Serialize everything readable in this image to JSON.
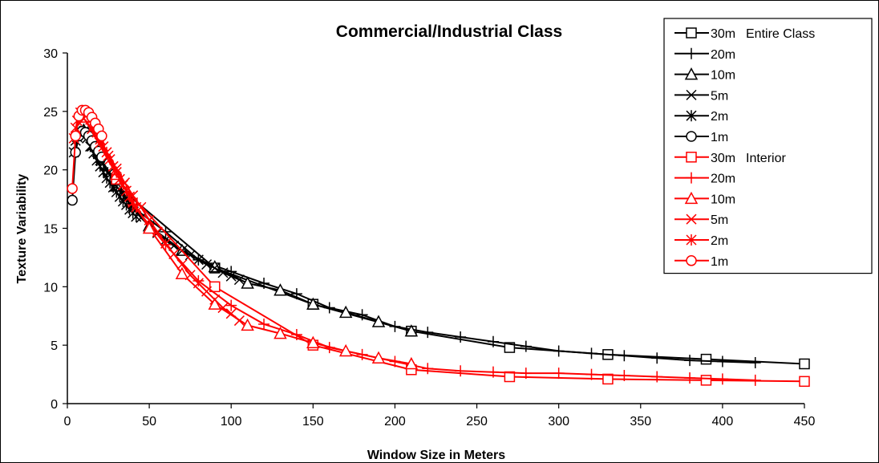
{
  "chart_data": {
    "type": "line",
    "title": "Commercial/Industrial Class",
    "xlabel": "Window Size in Meters",
    "ylabel": "Texture Variability",
    "xlim": [
      0,
      450
    ],
    "ylim": [
      0,
      30
    ],
    "xticks": [
      0,
      50,
      100,
      150,
      200,
      250,
      300,
      350,
      400,
      450
    ],
    "yticks": [
      0,
      5,
      10,
      15,
      20,
      25,
      30
    ],
    "grid": false,
    "legend_position": "top-right",
    "series": [
      {
        "name": "30m",
        "legend_note": "Entire Class",
        "color": "#000000",
        "marker": "square",
        "x": [
          30,
          90,
          150,
          210,
          270,
          330,
          390,
          450
        ],
        "y": [
          18.7,
          11.6,
          8.5,
          6.2,
          4.8,
          4.2,
          3.8,
          3.4
        ]
      },
      {
        "name": "20m",
        "color": "#000000",
        "marker": "plus",
        "x": [
          20,
          40,
          60,
          80,
          100,
          120,
          140,
          160,
          180,
          200,
          220,
          240,
          260,
          280,
          300,
          320,
          340,
          360,
          380,
          400,
          420
        ],
        "y": [
          21.0,
          16.8,
          14.7,
          12.3,
          11.3,
          10.3,
          9.4,
          8.2,
          7.6,
          6.6,
          6.1,
          5.7,
          5.3,
          4.9,
          4.5,
          4.3,
          4.1,
          3.9,
          3.7,
          3.6,
          3.5
        ]
      },
      {
        "name": "10m",
        "color": "#000000",
        "marker": "triangle",
        "x": [
          10,
          30,
          50,
          70,
          90,
          110,
          130,
          150,
          170,
          190,
          210
        ],
        "y": [
          23.4,
          18.6,
          15.2,
          13.1,
          11.7,
          10.3,
          9.7,
          8.5,
          7.8,
          7.0,
          6.2
        ]
      },
      {
        "name": "5m",
        "color": "#000000",
        "marker": "x",
        "x": [
          5,
          10,
          15,
          20,
          25,
          30,
          35,
          40,
          45,
          50,
          55,
          60,
          65,
          70,
          75,
          80,
          85,
          90,
          95,
          100,
          105
        ],
        "y": [
          22.5,
          23.3,
          22.0,
          20.8,
          19.7,
          18.6,
          17.6,
          16.7,
          15.9,
          15.2,
          14.6,
          14.0,
          13.5,
          13.1,
          12.7,
          12.3,
          11.9,
          11.6,
          11.2,
          10.9,
          10.6
        ]
      },
      {
        "name": "2m",
        "color": "#000000",
        "marker": "asterisk",
        "x": [
          4,
          6,
          8,
          10,
          12,
          14,
          16,
          18,
          20,
          22,
          24,
          26,
          28,
          30,
          32,
          34,
          36,
          38,
          40,
          42
        ],
        "y": [
          21.5,
          22.8,
          23.3,
          23.2,
          22.7,
          22.0,
          21.4,
          20.8,
          20.3,
          19.8,
          19.3,
          18.9,
          18.5,
          18.1,
          17.7,
          17.3,
          17.0,
          16.6,
          16.3,
          16.0
        ]
      },
      {
        "name": "1m",
        "color": "#000000",
        "marker": "circle",
        "x": [
          3,
          5,
          7,
          9,
          11,
          13,
          15,
          17,
          19,
          21
        ],
        "y": [
          17.4,
          21.5,
          22.9,
          23.3,
          23.2,
          22.9,
          22.5,
          22.0,
          21.6,
          21.1
        ]
      },
      {
        "name": "30m",
        "legend_note": "Interior",
        "color": "#ff0000",
        "marker": "square",
        "x": [
          30,
          90,
          150,
          210,
          270,
          330,
          390,
          450
        ],
        "y": [
          19.2,
          10.0,
          5.0,
          2.9,
          2.3,
          2.1,
          2.0,
          1.9
        ]
      },
      {
        "name": "20m",
        "color": "#ff0000",
        "marker": "plus",
        "x": [
          20,
          40,
          60,
          80,
          100,
          120,
          140,
          160,
          180,
          200,
          220,
          240,
          260,
          280,
          300,
          320,
          340,
          360,
          380,
          400,
          420
        ],
        "y": [
          22.7,
          17.0,
          13.6,
          10.5,
          8.4,
          6.8,
          5.9,
          4.8,
          4.2,
          3.6,
          3.0,
          2.8,
          2.7,
          2.6,
          2.6,
          2.5,
          2.4,
          2.3,
          2.2,
          2.1,
          2.0
        ]
      },
      {
        "name": "10m",
        "color": "#ff0000",
        "marker": "triangle",
        "x": [
          10,
          30,
          50,
          70,
          90,
          110,
          130,
          150,
          170,
          190,
          210
        ],
        "y": [
          24.5,
          19.6,
          15.0,
          11.1,
          8.5,
          6.7,
          6.0,
          5.2,
          4.5,
          3.9,
          3.4
        ]
      },
      {
        "name": "5m",
        "color": "#ff0000",
        "marker": "x",
        "x": [
          5,
          10,
          15,
          20,
          25,
          30,
          35,
          40,
          45,
          50,
          55,
          60,
          65,
          70,
          75,
          80,
          85,
          90,
          95,
          100,
          105
        ],
        "y": [
          23.6,
          24.4,
          23.5,
          22.3,
          21.2,
          20.1,
          18.9,
          17.8,
          16.8,
          15.7,
          14.7,
          13.7,
          12.8,
          11.9,
          11.0,
          10.3,
          9.6,
          8.9,
          8.2,
          7.7,
          7.1
        ]
      },
      {
        "name": "2m",
        "color": "#ff0000",
        "marker": "asterisk",
        "x": [
          4,
          6,
          8,
          10,
          12,
          14,
          16,
          18,
          20,
          22,
          24,
          26,
          28,
          30,
          32,
          34,
          36,
          38,
          40,
          42
        ],
        "y": [
          22.7,
          24.2,
          24.9,
          25.0,
          24.8,
          24.3,
          23.8,
          23.2,
          22.6,
          22.0,
          21.5,
          20.9,
          20.3,
          19.8,
          19.2,
          18.7,
          18.2,
          17.7,
          17.2,
          16.8
        ]
      },
      {
        "name": "1m",
        "color": "#ff0000",
        "marker": "circle",
        "x": [
          3,
          5,
          7,
          9,
          11,
          13,
          15,
          17,
          19,
          21
        ],
        "y": [
          18.4,
          22.9,
          24.6,
          25.1,
          25.1,
          24.9,
          24.5,
          24.0,
          23.5,
          22.9
        ]
      }
    ]
  }
}
